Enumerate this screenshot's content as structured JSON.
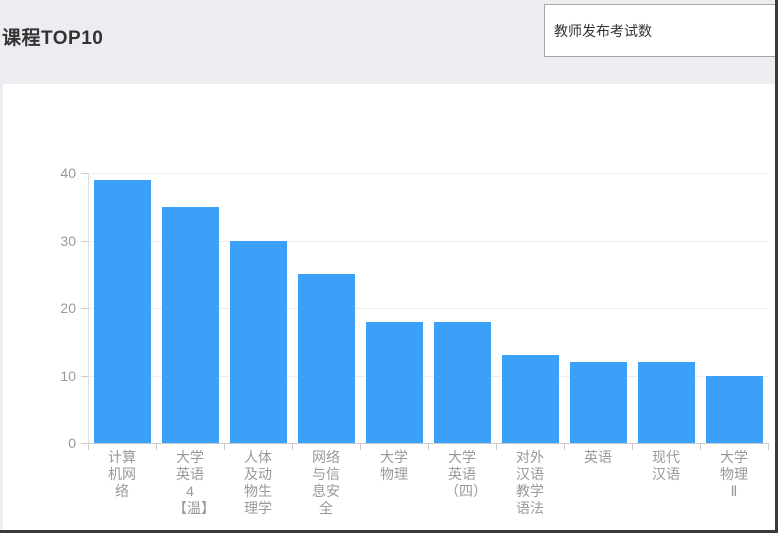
{
  "header": {
    "title": "课程TOP10",
    "selector": {
      "value": "教师发布考试数"
    }
  },
  "chart_data": {
    "type": "bar",
    "title": "课程TOP10",
    "series_name": "教师发布考试数",
    "categories": [
      "计算机网络",
      "大学英语4【温】",
      "人体及动物生理学",
      "网络与信息安全",
      "大学物理",
      "大学英语（四）",
      "对外汉语教学语法",
      "英语",
      "现代汉语",
      "大学物理Ⅱ"
    ],
    "values": [
      39,
      35,
      30,
      25,
      18,
      18,
      13,
      12,
      12,
      10
    ],
    "xlabel": "",
    "ylabel": "",
    "ylim": [
      0,
      40
    ],
    "yticks": [
      0,
      10,
      20,
      30,
      40
    ],
    "grid": true,
    "legend_position": "none",
    "bar_color": "#3ba1f8"
  }
}
